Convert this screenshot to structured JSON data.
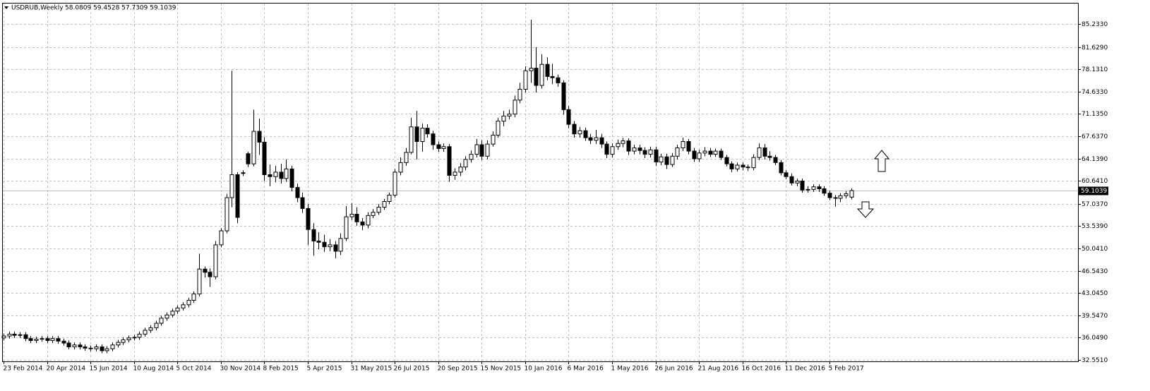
{
  "chart_data": {
    "type": "candlestick",
    "title": "USDRUB,Weekly",
    "subtitle": "58.0809 59.4528 57.7309 59.1039",
    "categories": [
      "23 Feb 2014",
      null,
      null,
      null,
      null,
      null,
      null,
      null,
      "20 Apr 2014",
      null,
      null,
      null,
      null,
      null,
      null,
      null,
      "15 Jun 2014",
      null,
      null,
      null,
      null,
      null,
      null,
      null,
      "10 Aug 2014",
      null,
      null,
      null,
      null,
      null,
      null,
      null,
      "5 Oct 2014",
      null,
      null,
      null,
      null,
      null,
      null,
      null,
      "30 Nov 2014",
      null,
      null,
      null,
      null,
      null,
      null,
      null,
      "8 Feb 2015",
      null,
      null,
      null,
      null,
      null,
      null,
      null,
      "5 Apr 2015",
      null,
      null,
      null,
      null,
      null,
      null,
      null,
      "31 May 2015",
      null,
      null,
      null,
      null,
      null,
      null,
      null,
      "26 Jul 2015",
      null,
      null,
      null,
      null,
      null,
      null,
      null,
      "20 Sep 2015",
      null,
      null,
      null,
      null,
      null,
      null,
      null,
      "15 Nov 2015",
      null,
      null,
      null,
      null,
      null,
      null,
      null,
      "10 Jan 2016",
      null,
      null,
      null,
      null,
      null,
      null,
      null,
      "6 Mar 2016",
      null,
      null,
      null,
      null,
      null,
      null,
      null,
      "1 May 2016",
      null,
      null,
      null,
      null,
      null,
      null,
      null,
      "26 Jun 2016",
      null,
      null,
      null,
      null,
      null,
      null,
      null,
      "21 Aug 2016",
      null,
      null,
      null,
      null,
      null,
      null,
      null,
      "16 Oct 2016",
      null,
      null,
      null,
      null,
      null,
      null,
      null,
      "11 Dec 2016",
      null,
      null,
      null,
      null,
      null,
      null,
      null,
      "5 Feb 2017",
      null,
      null,
      null,
      null
    ],
    "open": [
      36.0,
      36.3,
      36.6,
      36.4,
      36.5,
      35.9,
      35.6,
      35.8,
      35.9,
      35.6,
      35.9,
      35.5,
      35.2,
      34.6,
      34.9,
      34.6,
      34.4,
      34.3,
      34.6,
      34.0,
      34.3,
      34.9,
      35.3,
      35.7,
      36.0,
      36.1,
      36.6,
      37.2,
      37.6,
      38.3,
      39.1,
      39.6,
      40.2,
      40.7,
      41.2,
      41.9,
      42.9,
      46.8,
      46.3,
      45.6,
      50.6,
      52.8,
      58.0,
      61.6,
      61.8,
      64.9,
      63.3,
      68.4,
      66.7,
      61.6,
      61.3,
      62.0,
      61.0,
      62.5,
      59.6,
      58.0,
      56.3,
      53.0,
      51.2,
      51.0,
      50.3,
      50.6,
      49.6,
      51.6,
      55.0,
      55.4,
      54.2,
      53.7,
      55.2,
      55.7,
      56.5,
      57.4,
      58.4,
      62.0,
      63.5,
      65.1,
      69.1,
      66.8,
      68.9,
      68.0,
      66.3,
      65.7,
      66.0,
      61.5,
      62.0,
      62.8,
      64.0,
      64.8,
      66.3,
      64.5,
      66.4,
      67.8,
      70.0,
      70.8,
      71.1,
      73.3,
      75.0,
      77.9,
      78.3,
      75.6,
      78.9,
      77.0,
      76.8,
      76.0,
      71.8,
      69.5,
      68.0,
      68.5,
      67.4,
      67.0,
      67.4,
      66.4,
      64.8,
      66.0,
      66.5,
      66.9,
      65.3,
      65.8,
      65.4,
      64.8,
      65.5,
      63.6,
      64.4,
      63.2,
      64.5,
      65.8,
      66.8,
      65.3,
      64.1,
      65.0,
      65.3,
      64.8,
      65.3,
      64.3,
      63.3,
      62.5,
      63.1,
      62.8,
      62.7,
      64.3,
      65.8,
      64.5,
      64.3,
      63.5,
      61.9,
      61.3,
      60.3,
      60.6,
      59.2,
      59.3,
      59.7,
      59.4,
      58.7,
      58.0,
      57.9,
      58.3,
      58.0809
    ],
    "high": [
      36.7,
      37.0,
      37.0,
      36.9,
      36.9,
      36.3,
      36.2,
      36.3,
      36.3,
      36.3,
      36.3,
      35.9,
      35.6,
      35.3,
      35.3,
      35.0,
      34.8,
      35.0,
      35.0,
      34.7,
      35.3,
      35.7,
      36.1,
      36.4,
      36.5,
      37.0,
      37.6,
      38.0,
      38.7,
      39.5,
      40.0,
      40.6,
      41.1,
      41.6,
      42.3,
      43.3,
      49.2,
      47.2,
      46.9,
      51.2,
      53.2,
      58.6,
      77.9,
      62.0,
      62.3,
      65.2,
      71.8,
      70.4,
      67.5,
      63.2,
      63.0,
      63.3,
      64.0,
      63.0,
      60.2,
      58.8,
      57.0,
      54.0,
      52.6,
      52.2,
      51.5,
      51.2,
      52.4,
      56.7,
      57.1,
      56.5,
      54.8,
      55.7,
      56.2,
      57.0,
      57.8,
      58.8,
      62.5,
      64.3,
      65.8,
      70.5,
      71.6,
      69.6,
      69.5,
      68.5,
      66.8,
      66.5,
      66.4,
      62.6,
      63.4,
      64.5,
      65.4,
      67.2,
      67.0,
      67.0,
      68.4,
      70.5,
      71.6,
      71.8,
      74.0,
      76.0,
      78.6,
      85.9,
      81.6,
      80.5,
      80.0,
      79.0,
      77.3,
      76.4,
      72.4,
      70.0,
      69.1,
      69.0,
      68.0,
      68.6,
      68.0,
      66.8,
      66.5,
      67.1,
      67.4,
      67.3,
      66.3,
      66.3,
      65.9,
      66.0,
      66.0,
      64.9,
      64.9,
      65.0,
      66.3,
      67.4,
      67.2,
      65.8,
      65.5,
      65.9,
      65.8,
      65.7,
      65.7,
      64.7,
      63.7,
      63.5,
      63.5,
      63.2,
      64.8,
      66.5,
      66.4,
      65.3,
      64.7,
      63.9,
      62.3,
      61.8,
      61.0,
      61.0,
      59.8,
      60.1,
      60.1,
      59.8,
      59.1,
      58.4,
      58.7,
      59.0,
      59.4528
    ],
    "low": [
      35.6,
      35.9,
      36.0,
      36.0,
      35.5,
      35.2,
      35.2,
      35.4,
      35.2,
      35.2,
      35.1,
      34.8,
      34.2,
      34.2,
      34.2,
      34.0,
      33.9,
      33.9,
      33.6,
      33.6,
      33.9,
      34.5,
      34.9,
      35.3,
      35.6,
      35.7,
      36.2,
      36.8,
      37.2,
      37.9,
      38.7,
      39.2,
      39.8,
      40.3,
      40.8,
      41.5,
      42.5,
      45.5,
      44.0,
      45.2,
      50.2,
      52.4,
      56.5,
      54.0,
      61.4,
      62.8,
      62.9,
      64.7,
      60.6,
      59.8,
      60.4,
      60.2,
      60.5,
      59.0,
      57.3,
      55.6,
      50.6,
      48.9,
      49.9,
      49.5,
      49.6,
      48.5,
      49.0,
      51.2,
      54.5,
      53.6,
      52.9,
      53.2,
      54.8,
      55.3,
      56.1,
      57.0,
      58.0,
      61.5,
      63.0,
      64.8,
      64.0,
      65.2,
      67.4,
      65.5,
      65.2,
      65.2,
      60.5,
      60.8,
      61.4,
      62.3,
      63.5,
      64.3,
      63.9,
      64.0,
      66.0,
      67.4,
      69.2,
      70.3,
      70.6,
      72.8,
      74.5,
      76.0,
      74.5,
      75.1,
      76.4,
      75.8,
      75.4,
      71.0,
      68.9,
      67.4,
      67.4,
      66.9,
      66.4,
      66.4,
      65.8,
      64.2,
      64.3,
      65.5,
      65.9,
      64.7,
      64.8,
      64.8,
      64.2,
      64.3,
      63.0,
      63.1,
      62.5,
      62.8,
      64.0,
      65.3,
      64.8,
      63.6,
      63.6,
      64.5,
      64.4,
      64.4,
      63.9,
      62.9,
      62.0,
      62.1,
      62.3,
      62.2,
      62.3,
      63.9,
      64.0,
      63.8,
      63.1,
      61.5,
      60.9,
      59.9,
      59.8,
      58.8,
      58.8,
      58.9,
      58.9,
      58.3,
      57.6,
      56.6,
      57.3,
      57.9,
      57.7309
    ],
    "close": [
      36.3,
      36.6,
      36.4,
      36.5,
      35.9,
      35.6,
      35.8,
      35.9,
      35.6,
      35.9,
      35.5,
      35.2,
      34.6,
      34.9,
      34.6,
      34.4,
      34.3,
      34.6,
      34.0,
      34.3,
      34.9,
      35.3,
      35.7,
      36.0,
      36.1,
      36.6,
      37.2,
      37.6,
      38.3,
      39.1,
      39.6,
      40.2,
      40.7,
      41.2,
      41.9,
      42.9,
      46.8,
      46.3,
      45.6,
      50.6,
      52.8,
      58.0,
      61.6,
      54.9,
      61.9,
      63.3,
      68.4,
      66.7,
      61.6,
      61.3,
      62.0,
      61.0,
      62.5,
      59.6,
      58.0,
      56.3,
      53.0,
      51.2,
      51.0,
      50.3,
      50.6,
      49.6,
      51.6,
      55.0,
      55.4,
      54.2,
      53.7,
      55.2,
      55.7,
      56.5,
      57.4,
      58.4,
      62.0,
      63.5,
      65.1,
      69.1,
      66.8,
      68.9,
      68.0,
      66.3,
      65.7,
      66.0,
      61.5,
      62.0,
      62.8,
      64.0,
      64.8,
      66.3,
      64.5,
      66.4,
      67.8,
      70.0,
      70.8,
      71.1,
      73.3,
      75.0,
      77.9,
      78.3,
      75.6,
      78.9,
      77.0,
      76.8,
      76.0,
      71.8,
      69.5,
      68.0,
      68.5,
      67.4,
      67.0,
      67.4,
      66.4,
      64.8,
      66.0,
      66.5,
      66.9,
      65.3,
      65.8,
      65.4,
      64.8,
      65.5,
      63.6,
      64.4,
      63.2,
      64.5,
      65.8,
      66.8,
      65.3,
      64.1,
      65.0,
      65.3,
      64.8,
      65.3,
      64.3,
      63.3,
      62.5,
      63.1,
      62.8,
      62.7,
      64.3,
      65.8,
      64.5,
      64.3,
      63.5,
      61.9,
      61.3,
      60.3,
      60.6,
      59.2,
      59.3,
      59.7,
      59.4,
      58.7,
      58.0,
      57.9,
      58.3,
      58.6,
      59.1039
    ],
    "ylim": [
      32.327,
      88.443
    ],
    "yticks": [
      {
        "value": 85.233,
        "label": "85.2330"
      },
      {
        "value": 81.629,
        "label": "81.6290"
      },
      {
        "value": 78.131,
        "label": "78.1310"
      },
      {
        "value": 74.633,
        "label": "74.6330"
      },
      {
        "value": 71.135,
        "label": "71.1350"
      },
      {
        "value": 67.637,
        "label": "67.6370"
      },
      {
        "value": 64.139,
        "label": "64.1390"
      },
      {
        "value": 60.641,
        "label": "60.6410"
      },
      {
        "value": 57.037,
        "label": "57.0370"
      },
      {
        "value": 53.539,
        "label": "53.5390"
      },
      {
        "value": 50.041,
        "label": "50.0410"
      },
      {
        "value": 46.543,
        "label": "46.5430"
      },
      {
        "value": 43.045,
        "label": "43.0450"
      },
      {
        "value": 39.547,
        "label": "39.5470"
      },
      {
        "value": 36.049,
        "label": "36.0490"
      },
      {
        "value": 32.551,
        "label": "32.5510"
      }
    ],
    "last_price": {
      "value": 59.1039,
      "label": "59.1039"
    },
    "grid": true,
    "up_color": "#ffffff",
    "down_color": "#000000"
  }
}
